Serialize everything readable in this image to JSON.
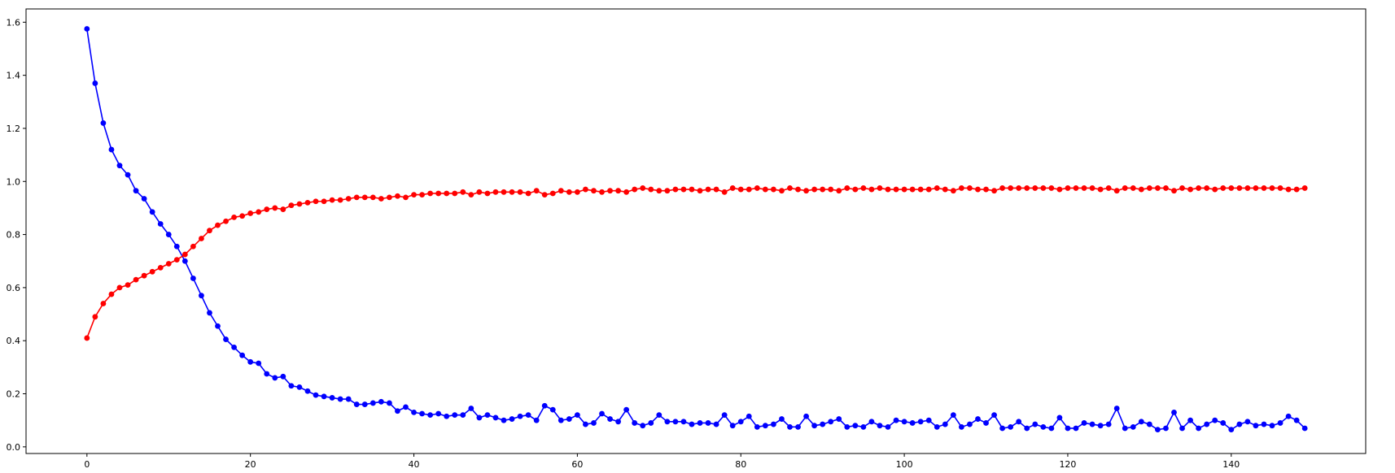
{
  "chart_data": {
    "type": "line",
    "title": "",
    "xlabel": "",
    "ylabel": "",
    "xlim": [
      -7.45,
      156.45
    ],
    "ylim": [
      -0.025,
      1.65
    ],
    "xticks": [
      0,
      20,
      40,
      60,
      80,
      100,
      120,
      140
    ],
    "yticks": [
      0.0,
      0.2,
      0.4,
      0.6,
      0.8,
      1.0,
      1.2,
      1.4,
      1.6
    ],
    "grid": false,
    "legend": "none",
    "marker": "circle",
    "x": [
      0,
      1,
      2,
      3,
      4,
      5,
      6,
      7,
      8,
      9,
      10,
      11,
      12,
      13,
      14,
      15,
      16,
      17,
      18,
      19,
      20,
      21,
      22,
      23,
      24,
      25,
      26,
      27,
      28,
      29,
      30,
      31,
      32,
      33,
      34,
      35,
      36,
      37,
      38,
      39,
      40,
      41,
      42,
      43,
      44,
      45,
      46,
      47,
      48,
      49,
      50,
      51,
      52,
      53,
      54,
      55,
      56,
      57,
      58,
      59,
      60,
      61,
      62,
      63,
      64,
      65,
      66,
      67,
      68,
      69,
      70,
      71,
      72,
      73,
      74,
      75,
      76,
      77,
      78,
      79,
      80,
      81,
      82,
      83,
      84,
      85,
      86,
      87,
      88,
      89,
      90,
      91,
      92,
      93,
      94,
      95,
      96,
      97,
      98,
      99,
      100,
      101,
      102,
      103,
      104,
      105,
      106,
      107,
      108,
      109,
      110,
      111,
      112,
      113,
      114,
      115,
      116,
      117,
      118,
      119,
      120,
      121,
      122,
      123,
      124,
      125,
      126,
      127,
      128,
      129,
      130,
      131,
      132,
      133,
      134,
      135,
      136,
      137,
      138,
      139,
      140,
      141,
      142,
      143,
      144,
      145,
      146,
      147,
      148,
      149
    ],
    "series": [
      {
        "color": "#0000ff",
        "values": [
          1.575,
          1.37,
          1.22,
          1.12,
          1.06,
          1.025,
          0.965,
          0.935,
          0.885,
          0.84,
          0.8,
          0.755,
          0.7,
          0.635,
          0.57,
          0.505,
          0.455,
          0.405,
          0.375,
          0.345,
          0.32,
          0.315,
          0.275,
          0.26,
          0.265,
          0.23,
          0.225,
          0.21,
          0.195,
          0.19,
          0.185,
          0.18,
          0.18,
          0.16,
          0.16,
          0.165,
          0.17,
          0.165,
          0.135,
          0.15,
          0.13,
          0.125,
          0.12,
          0.125,
          0.115,
          0.12,
          0.12,
          0.145,
          0.11,
          0.12,
          0.11,
          0.1,
          0.105,
          0.115,
          0.12,
          0.1,
          0.155,
          0.14,
          0.1,
          0.105,
          0.12,
          0.085,
          0.09,
          0.125,
          0.105,
          0.095,
          0.14,
          0.09,
          0.08,
          0.09,
          0.12,
          0.095,
          0.095,
          0.095,
          0.085,
          0.09,
          0.09,
          0.085,
          0.12,
          0.08,
          0.095,
          0.115,
          0.075,
          0.08,
          0.085,
          0.105,
          0.075,
          0.075,
          0.115,
          0.08,
          0.085,
          0.095,
          0.105,
          0.075,
          0.08,
          0.075,
          0.095,
          0.08,
          0.075,
          0.1,
          0.095,
          0.09,
          0.095,
          0.1,
          0.075,
          0.085,
          0.12,
          0.075,
          0.085,
          0.105,
          0.09,
          0.12,
          0.07,
          0.075,
          0.095,
          0.07,
          0.085,
          0.075,
          0.07,
          0.11,
          0.07,
          0.07,
          0.09,
          0.085,
          0.08,
          0.085,
          0.145,
          0.07,
          0.075,
          0.095,
          0.085,
          0.065,
          0.07,
          0.13,
          0.07,
          0.1,
          0.07,
          0.085,
          0.1,
          0.09,
          0.065,
          0.085,
          0.095,
          0.08,
          0.085,
          0.08,
          0.09,
          0.115,
          0.1,
          0.07
        ]
      },
      {
        "color": "#ff0000",
        "values": [
          0.41,
          0.49,
          0.54,
          0.575,
          0.6,
          0.61,
          0.63,
          0.645,
          0.66,
          0.675,
          0.69,
          0.705,
          0.725,
          0.755,
          0.785,
          0.815,
          0.835,
          0.85,
          0.865,
          0.87,
          0.88,
          0.885,
          0.895,
          0.9,
          0.895,
          0.91,
          0.915,
          0.92,
          0.925,
          0.925,
          0.93,
          0.93,
          0.935,
          0.94,
          0.94,
          0.94,
          0.935,
          0.94,
          0.945,
          0.94,
          0.95,
          0.95,
          0.955,
          0.955,
          0.955,
          0.955,
          0.96,
          0.95,
          0.96,
          0.955,
          0.96,
          0.96,
          0.96,
          0.96,
          0.955,
          0.965,
          0.95,
          0.955,
          0.965,
          0.96,
          0.96,
          0.97,
          0.965,
          0.96,
          0.965,
          0.965,
          0.96,
          0.97,
          0.975,
          0.97,
          0.965,
          0.965,
          0.97,
          0.97,
          0.97,
          0.965,
          0.97,
          0.97,
          0.96,
          0.975,
          0.97,
          0.97,
          0.975,
          0.97,
          0.97,
          0.965,
          0.975,
          0.97,
          0.965,
          0.97,
          0.97,
          0.97,
          0.965,
          0.975,
          0.97,
          0.975,
          0.97,
          0.975,
          0.97,
          0.97,
          0.97,
          0.97,
          0.97,
          0.97,
          0.975,
          0.97,
          0.965,
          0.975,
          0.975,
          0.97,
          0.97,
          0.965,
          0.975,
          0.975,
          0.975,
          0.975,
          0.975,
          0.975,
          0.975,
          0.97,
          0.975,
          0.975,
          0.975,
          0.975,
          0.97,
          0.975,
          0.965,
          0.975,
          0.975,
          0.97,
          0.975,
          0.975,
          0.975,
          0.965,
          0.975,
          0.97,
          0.975,
          0.975,
          0.97,
          0.975,
          0.975,
          0.975,
          0.975,
          0.975,
          0.975,
          0.975,
          0.975,
          0.97,
          0.97,
          0.975
        ]
      }
    ]
  }
}
